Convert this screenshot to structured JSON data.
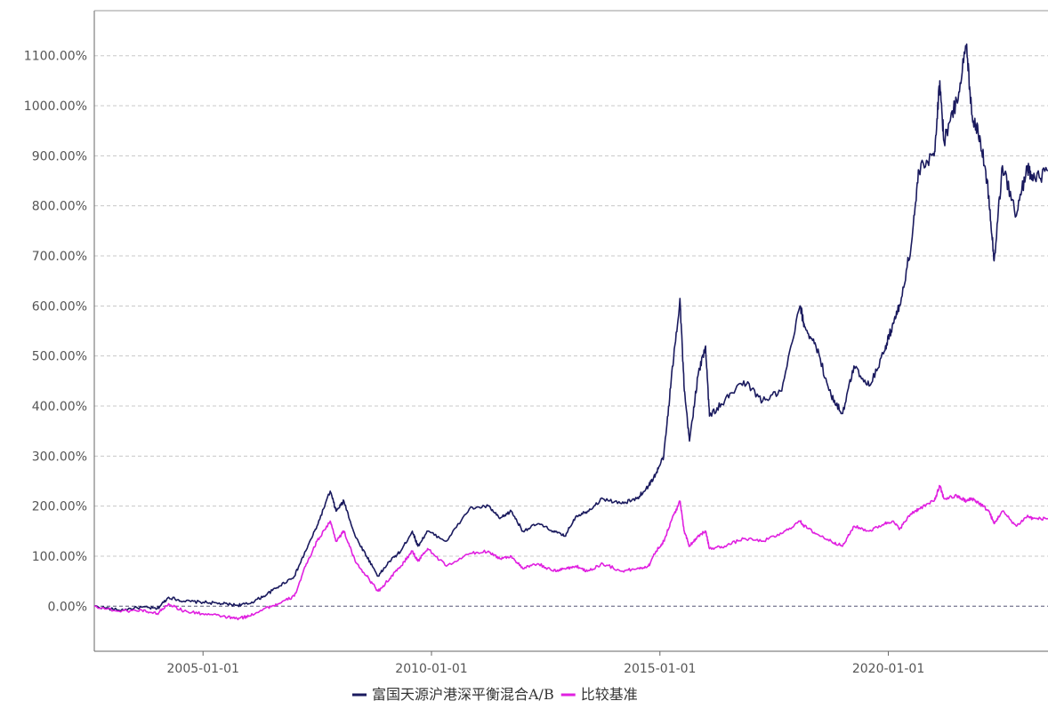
{
  "chart_data": {
    "type": "line",
    "x_type": "date",
    "xlim": [
      "2002-08-16",
      "2023-06-30"
    ],
    "ylim": [
      -90,
      1190
    ],
    "y_unit": "%",
    "x_ticks": [
      "2005-01-01",
      "2010-01-01",
      "2015-01-01",
      "2020-01-01"
    ],
    "y_ticks": [
      0,
      100,
      200,
      300,
      400,
      500,
      600,
      700,
      800,
      900,
      1000,
      1100
    ],
    "y_tick_labels": [
      "0.00%",
      "100.00%",
      "200.00%",
      "300.00%",
      "400.00%",
      "500.00%",
      "600.00%",
      "700.00%",
      "800.00%",
      "900.00%",
      "1000.00%",
      "1100.00%"
    ],
    "grid": true,
    "legend_position": "bottom-center",
    "series": [
      {
        "name": "富国天源沪港深平衡混合A/B",
        "color": "#1a1a5e",
        "points": [
          [
            "2002-08-16",
            0
          ],
          [
            "2003-03-01",
            -8
          ],
          [
            "2003-09-01",
            -2
          ],
          [
            "2004-01-01",
            -5
          ],
          [
            "2004-04-01",
            18
          ],
          [
            "2004-08-01",
            10
          ],
          [
            "2005-01-01",
            8
          ],
          [
            "2005-06-01",
            5
          ],
          [
            "2005-10-01",
            2
          ],
          [
            "2006-01-01",
            5
          ],
          [
            "2006-05-01",
            20
          ],
          [
            "2006-09-01",
            40
          ],
          [
            "2007-01-01",
            60
          ],
          [
            "2007-04-01",
            110
          ],
          [
            "2007-07-01",
            160
          ],
          [
            "2007-10-15",
            230
          ],
          [
            "2007-12-01",
            190
          ],
          [
            "2008-02-01",
            210
          ],
          [
            "2008-05-01",
            140
          ],
          [
            "2008-08-01",
            100
          ],
          [
            "2008-11-01",
            60
          ],
          [
            "2009-02-01",
            90
          ],
          [
            "2009-05-01",
            110
          ],
          [
            "2009-08-01",
            150
          ],
          [
            "2009-09-15",
            120
          ],
          [
            "2009-12-01",
            150
          ],
          [
            "2010-05-01",
            130
          ],
          [
            "2010-11-01",
            195
          ],
          [
            "2011-04-01",
            200
          ],
          [
            "2011-07-01",
            175
          ],
          [
            "2011-10-01",
            190
          ],
          [
            "2012-01-01",
            150
          ],
          [
            "2012-05-01",
            165
          ],
          [
            "2012-09-01",
            150
          ],
          [
            "2012-12-01",
            140
          ],
          [
            "2013-03-01",
            180
          ],
          [
            "2013-06-01",
            190
          ],
          [
            "2013-10-01",
            215
          ],
          [
            "2014-03-01",
            205
          ],
          [
            "2014-07-01",
            215
          ],
          [
            "2014-10-01",
            240
          ],
          [
            "2014-12-01",
            265
          ],
          [
            "2015-02-01",
            300
          ],
          [
            "2015-04-01",
            450
          ],
          [
            "2015-06-10",
            615
          ],
          [
            "2015-07-15",
            430
          ],
          [
            "2015-08-25",
            330
          ],
          [
            "2015-11-01",
            460
          ],
          [
            "2016-01-01",
            520
          ],
          [
            "2016-02-01",
            380
          ],
          [
            "2016-06-01",
            410
          ],
          [
            "2016-11-01",
            450
          ],
          [
            "2017-04-01",
            410
          ],
          [
            "2017-09-01",
            430
          ],
          [
            "2018-01-25",
            600
          ],
          [
            "2018-03-01",
            560
          ],
          [
            "2018-06-01",
            520
          ],
          [
            "2018-10-01",
            420
          ],
          [
            "2019-01-01",
            385
          ],
          [
            "2019-04-01",
            480
          ],
          [
            "2019-08-01",
            440
          ],
          [
            "2019-12-01",
            510
          ],
          [
            "2020-02-01",
            560
          ],
          [
            "2020-04-01",
            600
          ],
          [
            "2020-07-01",
            720
          ],
          [
            "2020-09-01",
            870
          ],
          [
            "2021-01-01",
            900
          ],
          [
            "2021-02-15",
            1050
          ],
          [
            "2021-03-20",
            930
          ],
          [
            "2021-07-01",
            1010
          ],
          [
            "2021-09-15",
            1120
          ],
          [
            "2021-11-01",
            980
          ],
          [
            "2022-01-01",
            940
          ],
          [
            "2022-03-15",
            820
          ],
          [
            "2022-04-25",
            690
          ],
          [
            "2022-07-01",
            880
          ],
          [
            "2022-10-20",
            780
          ],
          [
            "2023-01-15",
            880
          ],
          [
            "2023-03-01",
            850
          ],
          [
            "2023-06-30",
            870
          ]
        ]
      },
      {
        "name": "比较基准",
        "color": "#e020e0",
        "points": [
          [
            "2002-08-16",
            0
          ],
          [
            "2003-03-01",
            -10
          ],
          [
            "2003-09-01",
            -8
          ],
          [
            "2004-01-01",
            -15
          ],
          [
            "2004-04-01",
            5
          ],
          [
            "2004-08-01",
            -10
          ],
          [
            "2005-01-01",
            -15
          ],
          [
            "2005-06-01",
            -20
          ],
          [
            "2005-10-01",
            -25
          ],
          [
            "2006-01-01",
            -20
          ],
          [
            "2006-05-01",
            -5
          ],
          [
            "2006-09-01",
            5
          ],
          [
            "2007-01-01",
            20
          ],
          [
            "2007-04-01",
            80
          ],
          [
            "2007-07-01",
            130
          ],
          [
            "2007-10-15",
            170
          ],
          [
            "2007-12-01",
            130
          ],
          [
            "2008-02-01",
            150
          ],
          [
            "2008-05-01",
            90
          ],
          [
            "2008-08-01",
            60
          ],
          [
            "2008-11-01",
            30
          ],
          [
            "2009-02-01",
            55
          ],
          [
            "2009-05-01",
            80
          ],
          [
            "2009-08-01",
            110
          ],
          [
            "2009-09-15",
            90
          ],
          [
            "2009-12-01",
            115
          ],
          [
            "2010-05-01",
            80
          ],
          [
            "2010-11-01",
            105
          ],
          [
            "2011-04-01",
            110
          ],
          [
            "2011-07-01",
            95
          ],
          [
            "2011-10-01",
            100
          ],
          [
            "2012-01-01",
            75
          ],
          [
            "2012-05-01",
            85
          ],
          [
            "2012-09-01",
            70
          ],
          [
            "2012-12-01",
            75
          ],
          [
            "2013-03-01",
            80
          ],
          [
            "2013-06-01",
            70
          ],
          [
            "2013-10-01",
            85
          ],
          [
            "2014-03-01",
            70
          ],
          [
            "2014-07-01",
            75
          ],
          [
            "2014-10-01",
            80
          ],
          [
            "2014-12-01",
            110
          ],
          [
            "2015-02-01",
            130
          ],
          [
            "2015-04-01",
            170
          ],
          [
            "2015-06-10",
            210
          ],
          [
            "2015-07-15",
            150
          ],
          [
            "2015-08-25",
            120
          ],
          [
            "2015-11-01",
            140
          ],
          [
            "2016-01-01",
            150
          ],
          [
            "2016-02-01",
            115
          ],
          [
            "2016-06-01",
            120
          ],
          [
            "2016-11-01",
            135
          ],
          [
            "2017-04-01",
            130
          ],
          [
            "2017-09-01",
            145
          ],
          [
            "2018-01-25",
            170
          ],
          [
            "2018-03-01",
            160
          ],
          [
            "2018-06-01",
            145
          ],
          [
            "2018-10-01",
            130
          ],
          [
            "2019-01-01",
            120
          ],
          [
            "2019-04-01",
            160
          ],
          [
            "2019-08-01",
            150
          ],
          [
            "2019-12-01",
            165
          ],
          [
            "2020-02-01",
            170
          ],
          [
            "2020-04-01",
            155
          ],
          [
            "2020-07-01",
            185
          ],
          [
            "2020-09-01",
            195
          ],
          [
            "2021-01-01",
            210
          ],
          [
            "2021-02-15",
            240
          ],
          [
            "2021-03-20",
            215
          ],
          [
            "2021-07-01",
            220
          ],
          [
            "2021-09-15",
            210
          ],
          [
            "2021-11-01",
            215
          ],
          [
            "2022-01-01",
            205
          ],
          [
            "2022-03-15",
            190
          ],
          [
            "2022-04-25",
            165
          ],
          [
            "2022-07-01",
            190
          ],
          [
            "2022-10-20",
            160
          ],
          [
            "2023-01-15",
            180
          ],
          [
            "2023-03-01",
            175
          ],
          [
            "2023-06-30",
            175
          ]
        ]
      }
    ]
  },
  "legend": [
    {
      "label": "富国天源沪港深平衡混合A/B",
      "color": "#1a1a5e"
    },
    {
      "label": "比较基准",
      "color": "#e020e0"
    }
  ]
}
